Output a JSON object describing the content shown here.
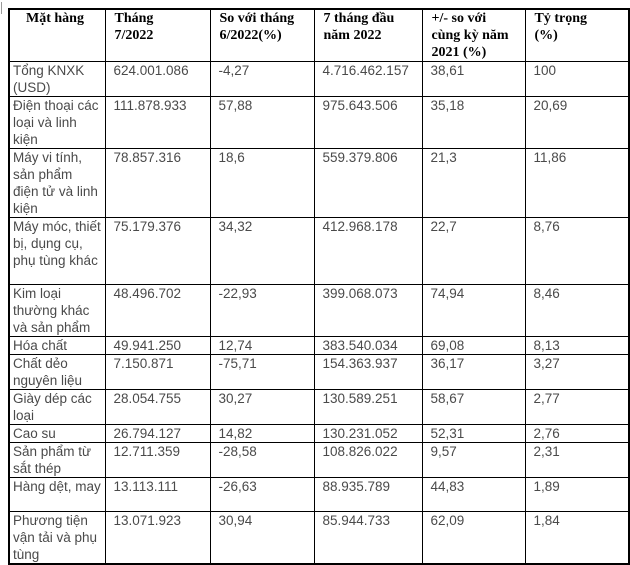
{
  "page": {
    "background": "#ffffff",
    "border_color": "#000000",
    "header_text_color": "#000000",
    "body_text_color": "#4a4a4a"
  },
  "table": {
    "columns": [
      {
        "label": "Mặt hàng"
      },
      {
        "label": "Tháng\n7/2022"
      },
      {
        "label": "So với tháng\n6/2022(%)"
      },
      {
        "label": "7 tháng đầu\nnăm 2022"
      },
      {
        "label": "+/- so với\ncùng kỳ năm\n2021 (%)"
      },
      {
        "label": "Tỷ trọng\n(%)"
      }
    ],
    "rows": [
      {
        "cells": [
          "Tổng KNXK (USD)",
          "624.001.086",
          "-4,27",
          "4.716.462.157",
          "38,61",
          "100"
        ]
      },
      {
        "cells": [
          "Điện thoại các loại và linh kiện",
          "111.878.933",
          "57,88",
          "975.643.506",
          "35,18",
          "20,69"
        ]
      },
      {
        "cells": [
          "Máy vi tính, sản phẩm điện tử và linh kiện",
          "78.857.316",
          "18,6",
          "559.379.806",
          "21,3",
          "11,86"
        ]
      },
      {
        "cells": [
          "Máy móc, thiết bị, dụng cụ, phụ tùng khác",
          "75.179.376",
          "34,32",
          "412.968.178",
          "22,7",
          "8,76"
        ]
      },
      {
        "cells": [
          "Kim loại thường khác và sản phẩm",
          "48.496.702",
          "-22,93",
          "399.068.073",
          "74,94",
          "8,46"
        ]
      },
      {
        "cells": [
          "Hóa chất",
          "49.941.250",
          "12,74",
          "383.540.034",
          "69,08",
          "8,13"
        ]
      },
      {
        "cells": [
          "Chất dẻo nguyên liệu",
          "7.150.871",
          "-75,71",
          "154.363.937",
          "36,17",
          "3,27"
        ]
      },
      {
        "cells": [
          "Giày dép các loại",
          "28.054.755",
          "30,27",
          "130.589.251",
          "58,67",
          "2,77"
        ]
      },
      {
        "cells": [
          "Cao su",
          "26.794.127",
          "14,82",
          "130.231.052",
          "52,31",
          "2,76"
        ]
      },
      {
        "cells": [
          "Sản phẩm từ sắt thép",
          "12.711.359",
          "-28,58",
          "108.826.022",
          "9,57",
          "2,31"
        ]
      },
      {
        "cells": [
          "Hàng dệt, may",
          "13.113.111",
          "-26,63",
          "88.935.789",
          "44,83",
          "1,89"
        ]
      },
      {
        "cells": [
          "Phương tiện vận tải và phụ tùng",
          "13.071.923",
          "30,94",
          "85.944.733",
          "62,09",
          "1,84"
        ]
      }
    ]
  }
}
